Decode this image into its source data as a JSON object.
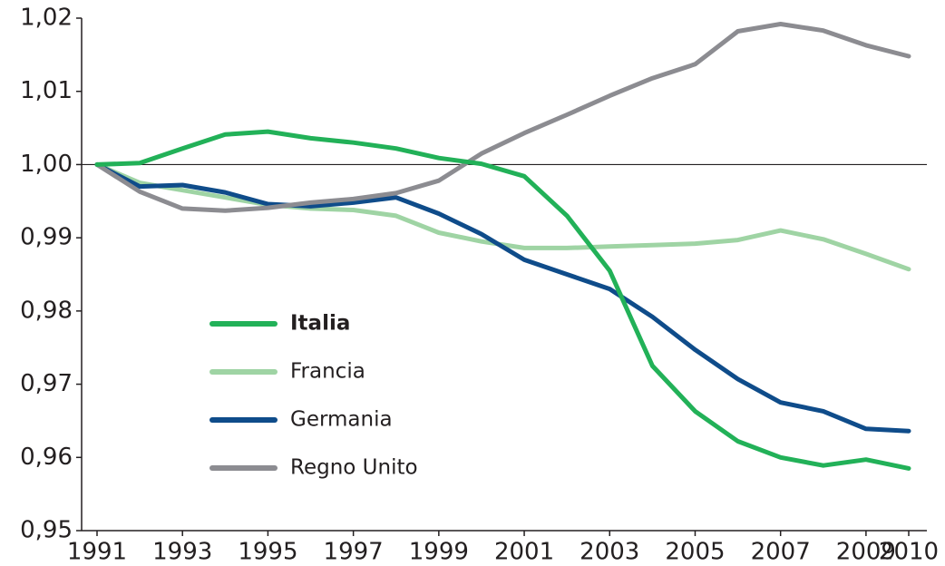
{
  "chart_data": {
    "type": "line",
    "x": [
      1991,
      1992,
      1993,
      1994,
      1995,
      1996,
      1997,
      1998,
      1999,
      2000,
      2001,
      2002,
      2003,
      2004,
      2005,
      2006,
      2007,
      2008,
      2009,
      2010
    ],
    "series": [
      {
        "name": "Italia",
        "color": "#22b158",
        "values": [
          1.0,
          1.0002,
          1.0022,
          1.0041,
          1.0045,
          1.0036,
          1.003,
          1.0022,
          1.0009,
          1.0001,
          0.9984,
          0.993,
          0.9855,
          0.9725,
          0.9663,
          0.9622,
          0.96,
          0.9589,
          0.9597,
          0.9585
        ]
      },
      {
        "name": "Francia",
        "color": "#9fd4a4",
        "values": [
          1.0,
          0.9975,
          0.9965,
          0.9955,
          0.9945,
          0.994,
          0.9938,
          0.993,
          0.9907,
          0.9895,
          0.9886,
          0.9886,
          0.9888,
          0.989,
          0.9892,
          0.9897,
          0.991,
          0.9898,
          0.9878,
          0.9857
        ]
      },
      {
        "name": "Germania",
        "color": "#0f4c8a",
        "values": [
          1.0,
          0.997,
          0.9972,
          0.9962,
          0.9946,
          0.9943,
          0.9948,
          0.9955,
          0.9933,
          0.9905,
          0.987,
          0.985,
          0.983,
          0.9792,
          0.9747,
          0.9707,
          0.9675,
          0.9663,
          0.9639,
          0.9636
        ]
      },
      {
        "name": "Regno Unito",
        "color": "#8c8c91",
        "values": [
          1.0,
          0.9963,
          0.994,
          0.9937,
          0.9941,
          0.9948,
          0.9953,
          0.9961,
          0.9978,
          1.0015,
          1.0043,
          1.0068,
          1.0094,
          1.0118,
          1.0137,
          1.0182,
          1.0192,
          1.0183,
          1.0163,
          1.0148
        ]
      }
    ],
    "xlim": [
      1991,
      2010
    ],
    "xticks": [
      1991,
      1993,
      1995,
      1997,
      1999,
      2001,
      2003,
      2005,
      2007,
      2009,
      2010
    ],
    "ylim": [
      0.95,
      1.02
    ],
    "yticks": [
      {
        "value": 0.95,
        "label": "0,95"
      },
      {
        "value": 0.96,
        "label": "0,96"
      },
      {
        "value": 0.97,
        "label": "0,97"
      },
      {
        "value": 0.98,
        "label": "0,98"
      },
      {
        "value": 0.99,
        "label": "0,99"
      },
      {
        "value": 1.0,
        "label": "1,00"
      },
      {
        "value": 1.01,
        "label": "1,01"
      },
      {
        "value": 1.02,
        "label": "1,02"
      }
    ],
    "reference_line": 1.0,
    "grid": false
  }
}
